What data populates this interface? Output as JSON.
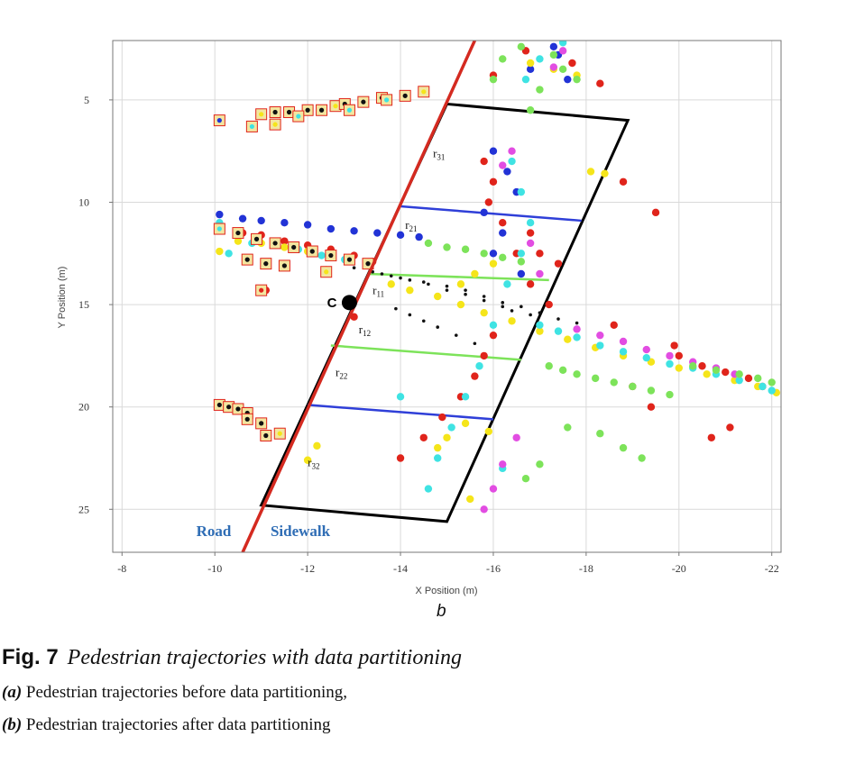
{
  "chart_data": {
    "type": "scatter",
    "xlabel": "X Position (m)",
    "ylabel": "Y Position (m)",
    "xlim": [
      -7.8,
      -22.2
    ],
    "ylim": [
      27.1,
      2.1
    ],
    "x_reversed": true,
    "y_reversed": true,
    "xticks": [
      -8,
      -10,
      -12,
      -14,
      -16,
      -18,
      -20,
      -22
    ],
    "yticks": [
      5,
      10,
      15,
      20,
      25
    ],
    "grid": true,
    "zone_labels": [
      "Road",
      "Sidewalk"
    ],
    "road_boundary": {
      "color": "#d42a20",
      "x": [
        -10.6,
        -15.6
      ],
      "y": [
        27.1,
        2.1
      ]
    },
    "partition_box": [
      [
        -15.0,
        5.2
      ],
      [
        -18.9,
        6.0
      ],
      [
        -15.0,
        25.6
      ],
      [
        -11.0,
        24.8
      ]
    ],
    "partition_lines": [
      {
        "color": "#2f3fd8",
        "x": [
          -14.0,
          -17.9
        ],
        "y": [
          10.2,
          10.9
        ]
      },
      {
        "color": "#7de35a",
        "x": [
          -13.3,
          -17.2
        ],
        "y": [
          13.5,
          13.8
        ]
      },
      {
        "color": "#7de35a",
        "x": [
          -12.5,
          -16.6
        ],
        "y": [
          17.0,
          17.7
        ]
      },
      {
        "color": "#2f3fd8",
        "x": [
          -12.0,
          -16.0
        ],
        "y": [
          19.9,
          20.6
        ]
      }
    ],
    "center_point": {
      "label": "C",
      "x": -12.9,
      "y": 14.9
    },
    "region_labels": [
      {
        "text": "r",
        "sub": "31",
        "x": -14.7,
        "y": 7.8
      },
      {
        "text": "r",
        "sub": "21",
        "x": -14.1,
        "y": 11.3
      },
      {
        "text": "r",
        "sub": "11",
        "x": -13.4,
        "y": 14.5
      },
      {
        "text": "r",
        "sub": "12",
        "x": -13.1,
        "y": 16.4
      },
      {
        "text": "r",
        "sub": "22",
        "x": -12.6,
        "y": 18.5
      },
      {
        "text": "r",
        "sub": "32",
        "x": -12.0,
        "y": 22.9
      }
    ],
    "series": [
      {
        "color": "#2233d6",
        "x": [
          -10.1,
          -10.6,
          -11.0,
          -11.5,
          -12.0,
          -12.5,
          -13.0,
          -13.5,
          -14.0,
          -14.4,
          -16.0,
          -16.3,
          -16.5,
          -15.8,
          -16.2,
          -16.0,
          -16.6,
          -16.8,
          -17.3,
          -17.6,
          -17.4
        ],
        "y": [
          10.6,
          10.8,
          10.9,
          11.0,
          11.1,
          11.3,
          11.4,
          11.5,
          11.6,
          11.7,
          7.5,
          8.5,
          9.5,
          10.5,
          11.5,
          12.5,
          13.5,
          3.5,
          2.4,
          4.0,
          2.8
        ]
      },
      {
        "color": "#e0241b",
        "x": [
          -10.1,
          -10.6,
          -11.0,
          -11.5,
          -12.0,
          -12.5,
          -13.0,
          -13.4,
          -11.1,
          -13.0,
          -15.8,
          -16.0,
          -15.9,
          -16.2,
          -16.5,
          -16.8,
          -17.2,
          -16.0,
          -15.8,
          -15.6,
          -15.3,
          -14.9,
          -14.5,
          -14.0,
          -16.7,
          -16.0,
          -17.7,
          -18.3,
          -18.8,
          -19.5,
          -20.0,
          -20.5,
          -21.0,
          -21.5,
          -21.8,
          -21.1,
          -20.7,
          -19.4,
          -19.9,
          -19.0,
          -18.6,
          -16.8,
          -17.0,
          -17.4
        ],
        "y": [
          11.2,
          11.5,
          11.6,
          11.9,
          12.1,
          12.3,
          12.6,
          12.9,
          14.3,
          15.6,
          8.0,
          9.0,
          10.0,
          11.0,
          12.5,
          14.0,
          15.0,
          16.5,
          17.5,
          18.5,
          19.5,
          20.5,
          21.5,
          22.5,
          2.6,
          3.8,
          3.2,
          4.2,
          9.0,
          10.5,
          17.5,
          18.0,
          18.3,
          18.6,
          19.0,
          21.0,
          21.5,
          20.0,
          17.0,
          19.0,
          16.0,
          11.5,
          12.5,
          13.0
        ]
      },
      {
        "color": "#f5e51a",
        "x": [
          -10.1,
          -10.5,
          -11.0,
          -11.5,
          -12.0,
          -12.4,
          -12.9,
          -12.2,
          -12.0,
          -13.8,
          -14.2,
          -14.8,
          -15.3,
          -15.8,
          -16.4,
          -17.0,
          -17.6,
          -18.2,
          -18.8,
          -19.4,
          -20.0,
          -20.6,
          -21.2,
          -21.7,
          -22.1,
          -16.0,
          -15.6,
          -15.3,
          -14.8,
          -15.0,
          -15.4,
          -15.9,
          -18.1,
          -18.4,
          -17.3,
          -17.8,
          -16.8,
          -15.5
        ],
        "y": [
          12.4,
          11.9,
          12.0,
          12.2,
          12.4,
          13.3,
          12.7,
          21.9,
          22.6,
          14.0,
          14.3,
          14.6,
          15.0,
          15.4,
          15.8,
          16.3,
          16.7,
          17.1,
          17.5,
          17.8,
          18.1,
          18.4,
          18.7,
          19.0,
          19.3,
          13.0,
          13.5,
          14.0,
          22.0,
          21.5,
          20.8,
          21.2,
          8.5,
          8.6,
          3.5,
          3.8,
          3.2,
          24.5
        ]
      },
      {
        "color": "#3fe3e3",
        "x": [
          -10.1,
          -10.3,
          -10.8,
          -11.3,
          -11.8,
          -12.3,
          -12.8,
          -13.3,
          -16.4,
          -16.6,
          -16.8,
          -16.6,
          -16.3,
          -16.0,
          -15.7,
          -15.4,
          -15.1,
          -14.8,
          -14.6,
          -17.0,
          -17.4,
          -17.8,
          -18.3,
          -18.8,
          -19.3,
          -19.8,
          -20.3,
          -20.8,
          -21.3,
          -21.8,
          -22.0,
          -16.2,
          -17.5,
          -17.0,
          -16.7,
          -14.0
        ],
        "y": [
          11.0,
          12.5,
          12.0,
          12.1,
          12.3,
          12.6,
          12.8,
          13.0,
          8.0,
          9.5,
          11.0,
          12.5,
          14.0,
          16.0,
          18.0,
          19.5,
          21.0,
          22.5,
          24.0,
          16.0,
          16.3,
          16.6,
          17.0,
          17.3,
          17.6,
          17.9,
          18.1,
          18.4,
          18.7,
          19.0,
          19.2,
          23.0,
          2.2,
          3.0,
          4.0,
          19.5
        ]
      },
      {
        "color": "#e24de2",
        "x": [
          -16.4,
          -16.2,
          -16.8,
          -17.0,
          -16.5,
          -16.2,
          -16.0,
          -15.8,
          -17.8,
          -18.3,
          -18.8,
          -19.3,
          -19.8,
          -20.3,
          -20.8,
          -21.2,
          -17.5,
          -17.3
        ],
        "y": [
          7.5,
          8.2,
          12.0,
          13.5,
          21.5,
          22.8,
          24.0,
          25.0,
          16.2,
          16.5,
          16.8,
          17.2,
          17.5,
          17.8,
          18.1,
          18.4,
          2.6,
          3.4
        ]
      },
      {
        "color": "#7de35a",
        "x": [
          -14.6,
          -15.0,
          -15.4,
          -15.8,
          -16.2,
          -16.6,
          -17.2,
          -17.5,
          -17.8,
          -18.2,
          -18.6,
          -19.0,
          -19.4,
          -19.8,
          -20.3,
          -20.8,
          -21.3,
          -21.7,
          -22.0,
          -17.3,
          -17.5,
          -17.8,
          -18.3,
          -18.8,
          -19.2,
          -17.0,
          -16.7,
          -17.0,
          -16.8,
          -16.2,
          -16.0,
          -17.6,
          -16.6
        ],
        "y": [
          12.0,
          12.2,
          12.3,
          12.5,
          12.7,
          12.9,
          18.0,
          18.2,
          18.4,
          18.6,
          18.8,
          19.0,
          19.2,
          19.4,
          18.0,
          18.2,
          18.4,
          18.6,
          18.8,
          2.8,
          3.5,
          4.0,
          21.3,
          22.0,
          22.5,
          22.8,
          23.5,
          4.5,
          5.5,
          3.0,
          4.0,
          21.0,
          2.4
        ]
      },
      {
        "color": "#111111",
        "x": [
          -13.6,
          -14.0,
          -14.5,
          -15.0,
          -15.4,
          -15.8,
          -16.2,
          -16.6,
          -17.0,
          -17.4,
          -17.8,
          -13.0,
          -13.4,
          -13.8,
          -14.2,
          -14.6,
          -15.0,
          -15.4,
          -15.8,
          -16.2,
          -16.4,
          -16.8,
          -13.9,
          -14.2,
          -14.5,
          -14.8,
          -15.2,
          -15.6
        ],
        "y": [
          13.5,
          13.7,
          13.9,
          14.1,
          14.3,
          14.6,
          14.9,
          15.1,
          15.4,
          15.7,
          15.9,
          13.2,
          13.4,
          13.6,
          13.8,
          14.0,
          14.3,
          14.5,
          14.8,
          15.1,
          15.3,
          15.5,
          15.2,
          15.5,
          15.8,
          16.1,
          16.5,
          16.9
        ]
      }
    ],
    "square_markers": {
      "stroke": "#e0241b",
      "fill": "#f3e6a0",
      "points": [
        {
          "x": -10.1,
          "y": 6.0,
          "color": "#2233d6"
        },
        {
          "x": -10.8,
          "y": 6.3,
          "color": "#3fe3e3"
        },
        {
          "x": -11.0,
          "y": 5.7,
          "color": "#f5e51a"
        },
        {
          "x": -11.3,
          "y": 5.6,
          "color": "#111111"
        },
        {
          "x": -11.6,
          "y": 5.6,
          "color": "#111111"
        },
        {
          "x": -12.0,
          "y": 5.5,
          "color": "#111111"
        },
        {
          "x": -12.3,
          "y": 5.5,
          "color": "#111111"
        },
        {
          "x": -12.6,
          "y": 5.3,
          "color": "#f5e51a"
        },
        {
          "x": -11.8,
          "y": 5.8,
          "color": "#3fe3e3"
        },
        {
          "x": -11.3,
          "y": 6.2,
          "color": "#f5e51a"
        },
        {
          "x": -12.8,
          "y": 5.2,
          "color": "#111111"
        },
        {
          "x": -13.2,
          "y": 5.1,
          "color": "#111111"
        },
        {
          "x": -13.6,
          "y": 4.9,
          "color": "#111111"
        },
        {
          "x": -14.1,
          "y": 4.8,
          "color": "#111111"
        },
        {
          "x": -14.5,
          "y": 4.6,
          "color": "#f5e51a"
        },
        {
          "x": -12.9,
          "y": 5.5,
          "color": "#3fe3e3"
        },
        {
          "x": -13.7,
          "y": 5.0,
          "color": "#3fe3e3"
        },
        {
          "x": -10.1,
          "y": 11.3,
          "color": "#3fe3e3"
        },
        {
          "x": -10.5,
          "y": 11.5,
          "color": "#111111"
        },
        {
          "x": -10.9,
          "y": 11.8,
          "color": "#111111"
        },
        {
          "x": -11.3,
          "y": 12.0,
          "color": "#111111"
        },
        {
          "x": -11.7,
          "y": 12.2,
          "color": "#111111"
        },
        {
          "x": -12.1,
          "y": 12.4,
          "color": "#111111"
        },
        {
          "x": -12.5,
          "y": 12.6,
          "color": "#111111"
        },
        {
          "x": -12.9,
          "y": 12.8,
          "color": "#111111"
        },
        {
          "x": -13.3,
          "y": 13.0,
          "color": "#111111"
        },
        {
          "x": -10.7,
          "y": 12.8,
          "color": "#111111"
        },
        {
          "x": -11.1,
          "y": 13.0,
          "color": "#111111"
        },
        {
          "x": -11.5,
          "y": 13.1,
          "color": "#111111"
        },
        {
          "x": -12.4,
          "y": 13.4,
          "color": "#f5e51a"
        },
        {
          "x": -11.0,
          "y": 14.3,
          "color": "#e0241b"
        },
        {
          "x": -10.1,
          "y": 19.9,
          "color": "#111111"
        },
        {
          "x": -10.3,
          "y": 20.0,
          "color": "#111111"
        },
        {
          "x": -10.5,
          "y": 20.1,
          "color": "#111111"
        },
        {
          "x": -10.7,
          "y": 20.3,
          "color": "#111111"
        },
        {
          "x": -10.7,
          "y": 20.6,
          "color": "#111111"
        },
        {
          "x": -11.0,
          "y": 20.8,
          "color": "#111111"
        },
        {
          "x": -11.1,
          "y": 21.4,
          "color": "#111111"
        },
        {
          "x": -11.4,
          "y": 21.3,
          "color": "#f5e51a"
        }
      ]
    }
  },
  "panel_label": "b",
  "caption": {
    "fig_label": "Fig. 7",
    "title": "Pedestrian trajectories with data partitioning",
    "a_label": "(a)",
    "a_text": "Pedestrian trajectories before data partitioning,",
    "b_label": "(b)",
    "b_text": "Pedestrian trajectories after data partitioning"
  }
}
